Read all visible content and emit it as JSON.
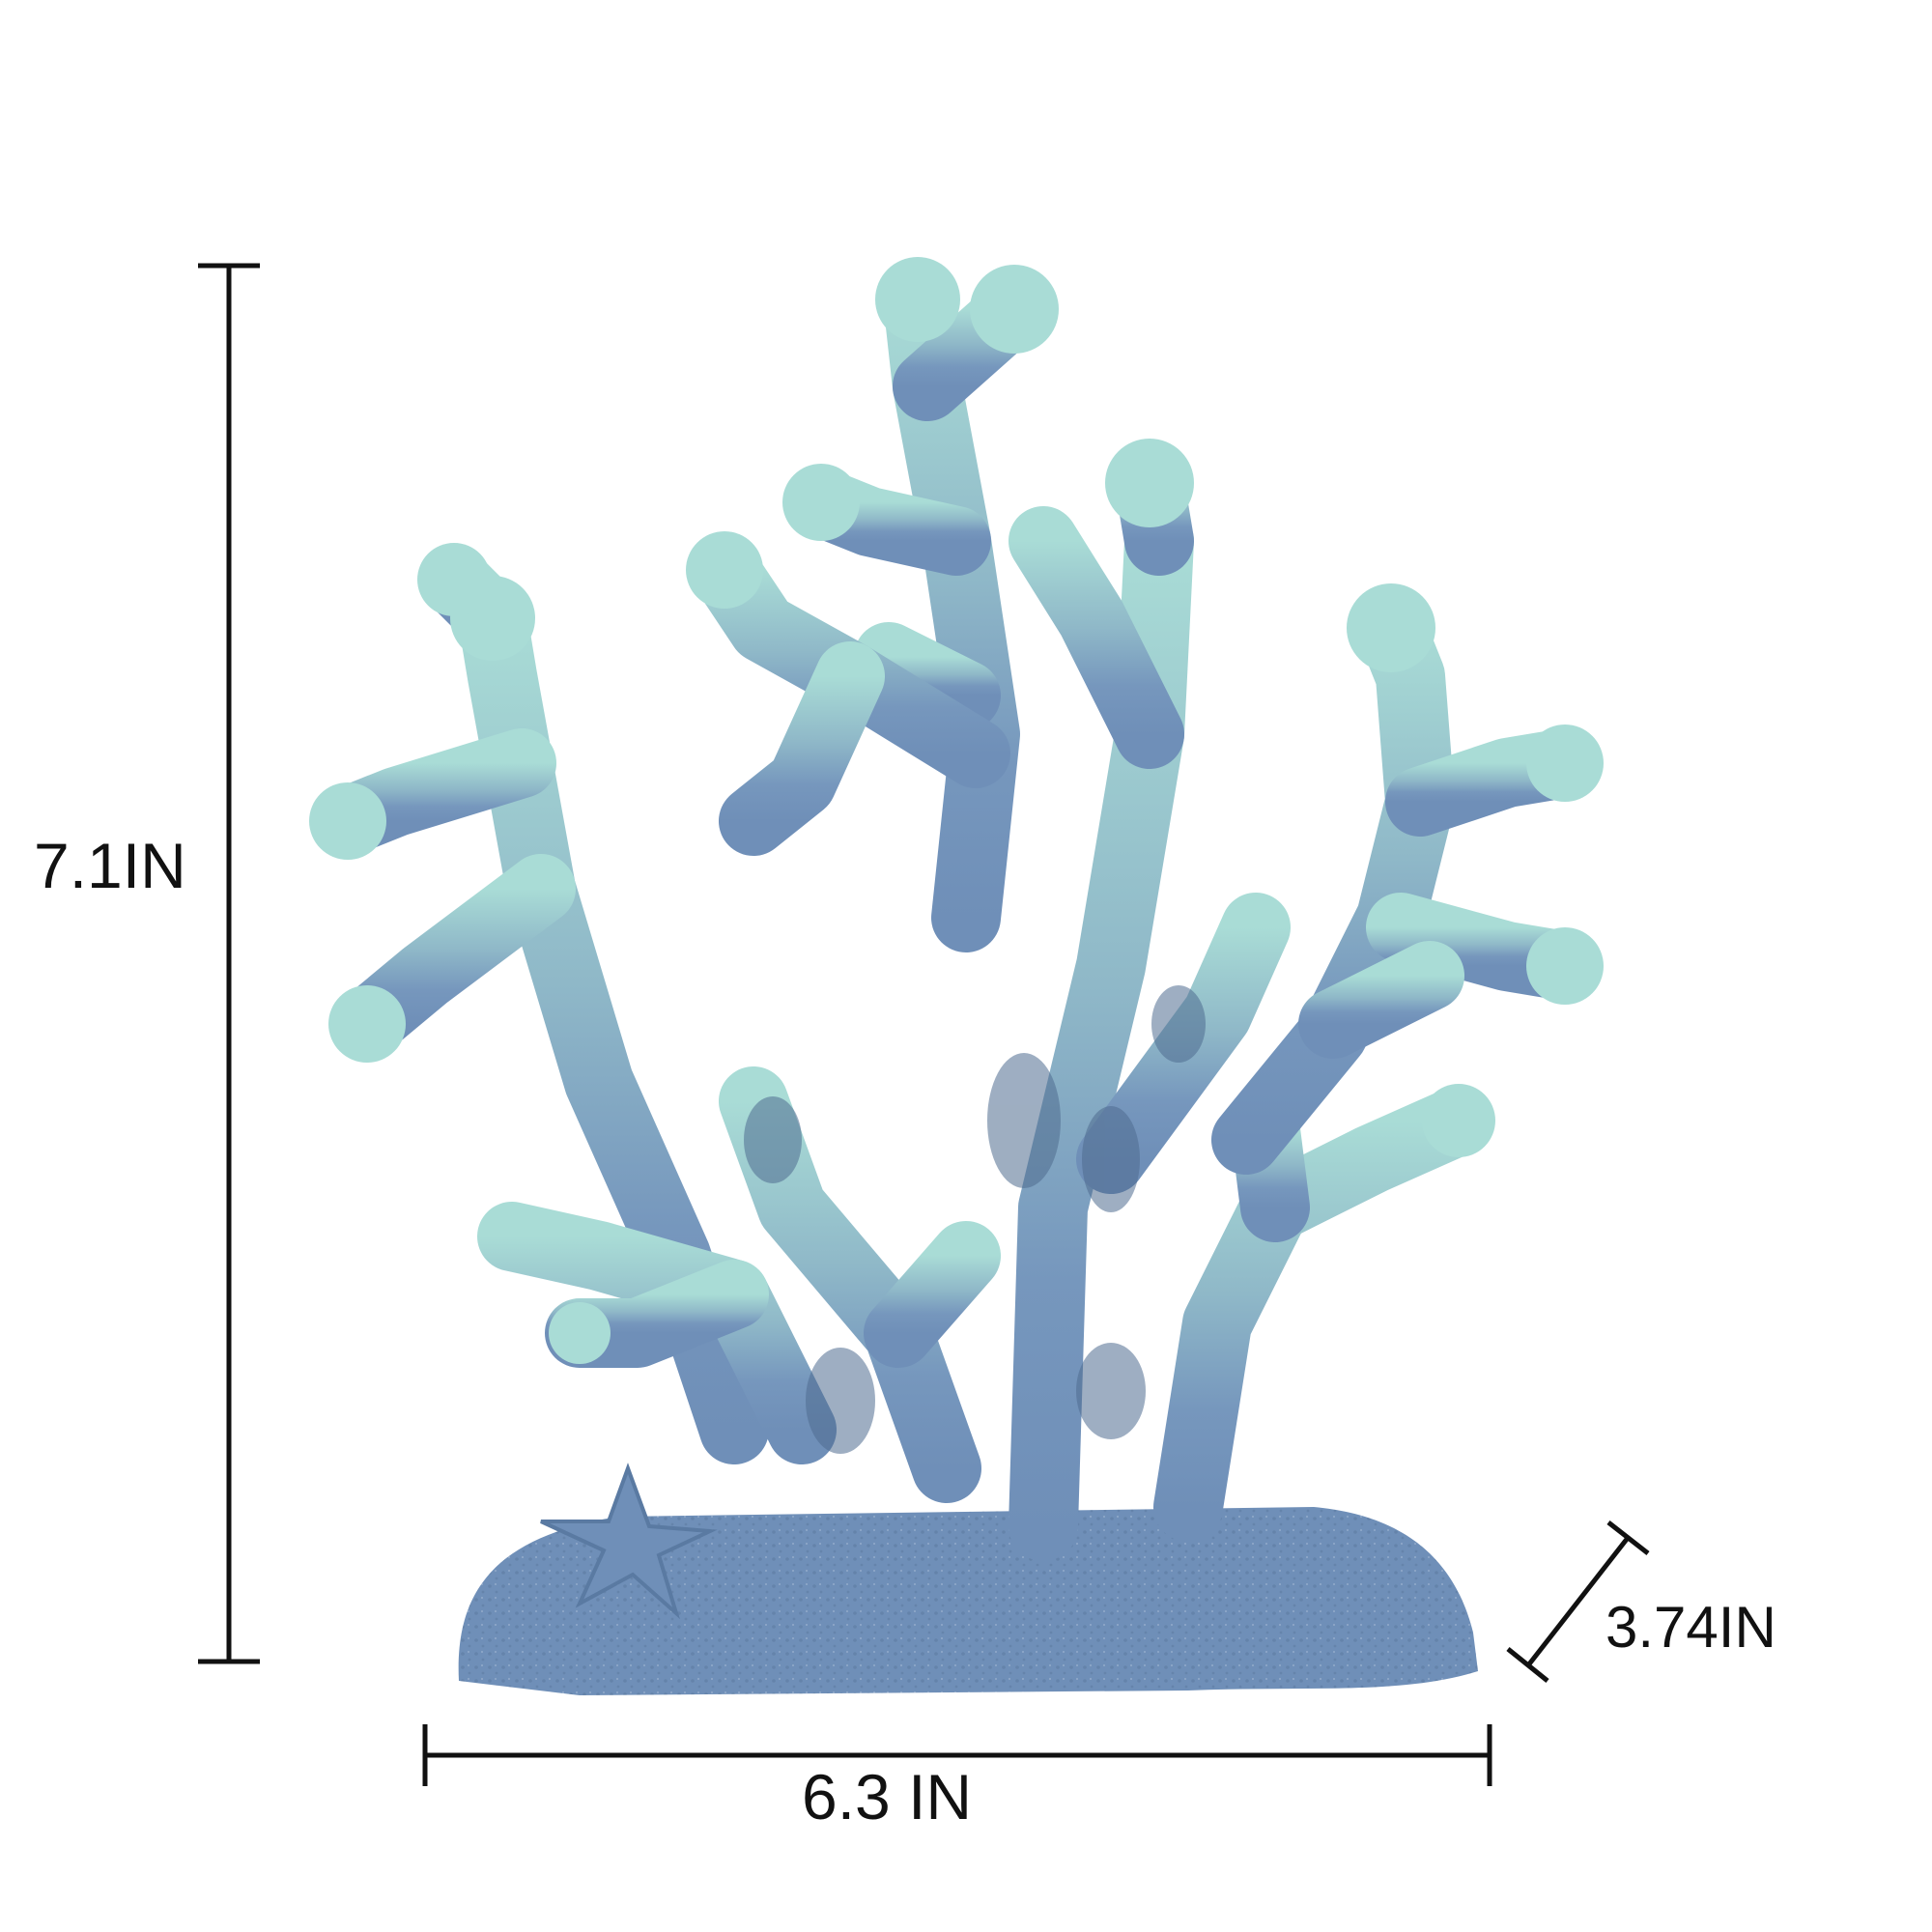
{
  "dimensions": {
    "height": "7.1IN",
    "width": "6.3 IN",
    "depth": "3.74IN"
  },
  "colors": {
    "background": "#ffffff",
    "line": "#111111",
    "coral_tip": "#a9dcd6",
    "coral_mid": "#7ea8c4",
    "coral_base": "#6f8fb8",
    "coral_shadow": "#4f6c8f"
  },
  "product": {
    "subject": "coral-figurine",
    "accent": "starfish"
  }
}
